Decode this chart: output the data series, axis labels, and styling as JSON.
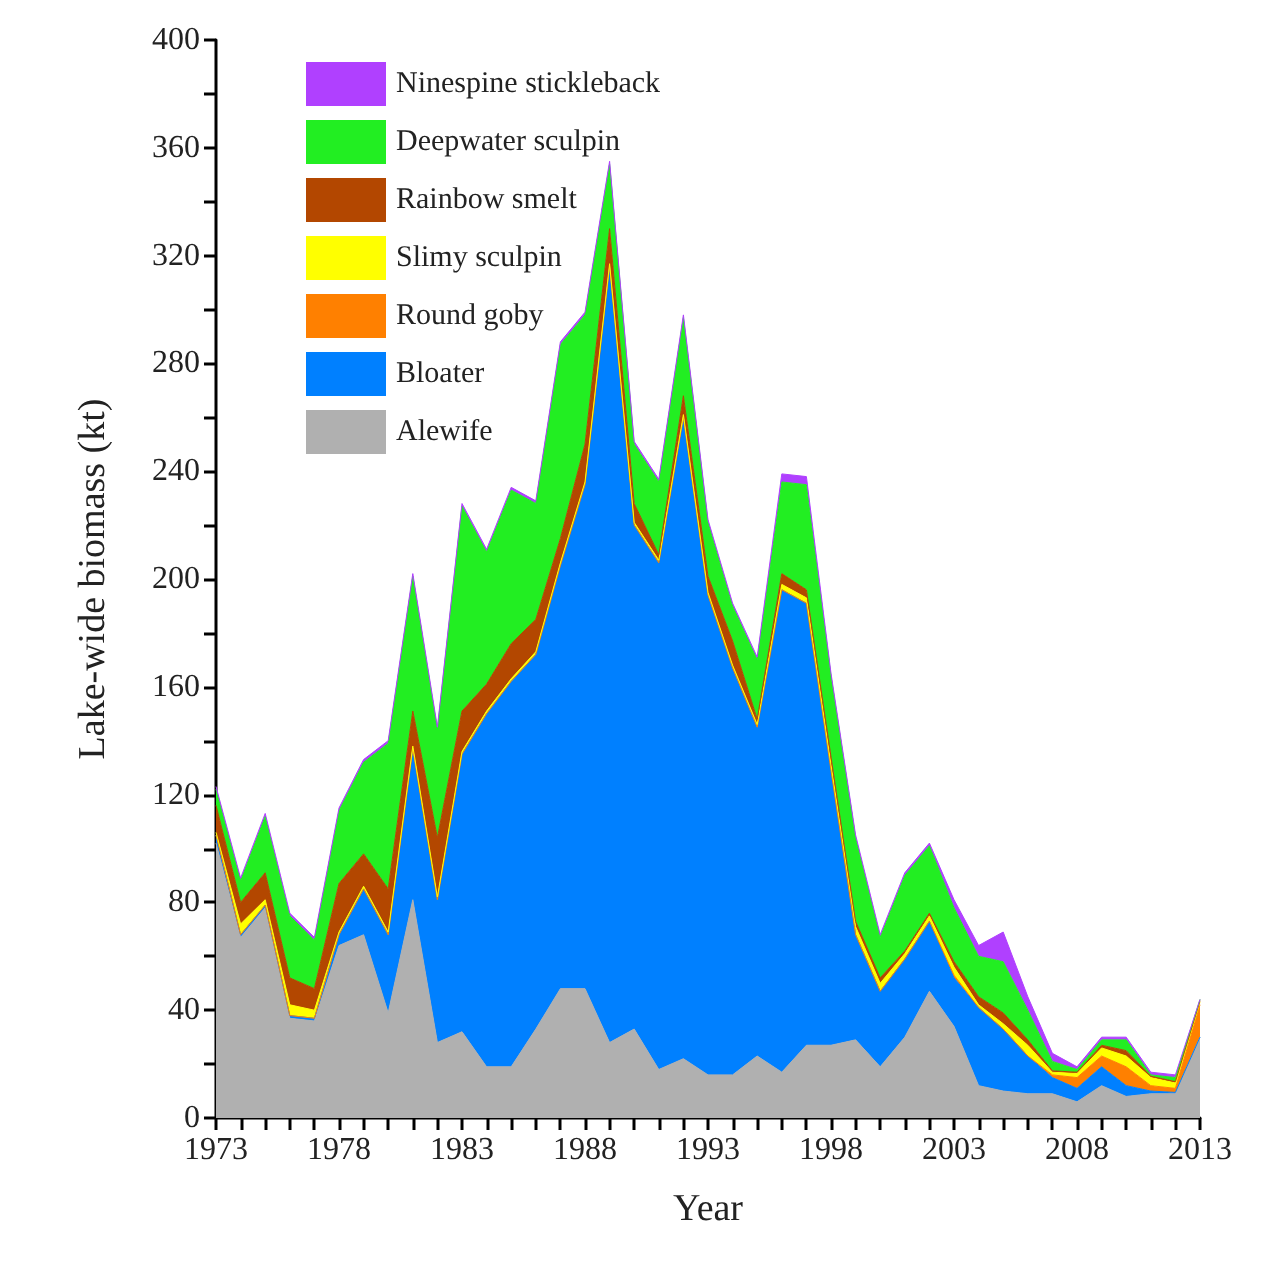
{
  "chart_data": {
    "type": "area",
    "stacked": true,
    "xlabel": "Year",
    "ylabel": "Lake-wide biomass (kt)",
    "legend": "top left",
    "grid": false,
    "marker": "none",
    "x": [
      1973,
      1974,
      1975,
      1976,
      1977,
      1978,
      1979,
      1980,
      1981,
      1982,
      1983,
      1984,
      1985,
      1986,
      1987,
      1988,
      1989,
      1990,
      1991,
      1992,
      1993,
      1994,
      1995,
      1996,
      1997,
      1998,
      1999,
      2000,
      2001,
      2002,
      2003,
      2004,
      2005,
      2006,
      2007,
      2008,
      2009,
      2010,
      2011,
      2012,
      2013
    ],
    "xlim": [
      1973,
      2013
    ],
    "xticks": [
      1973,
      {
        "value": 1974,
        "label": null
      },
      {
        "value": 1975,
        "label": null
      },
      {
        "value": 1976,
        "label": null
      },
      {
        "value": 1977,
        "label": null
      },
      1978,
      {
        "value": 1979,
        "label": null
      },
      {
        "value": 1980,
        "label": null
      },
      {
        "value": 1981,
        "label": null
      },
      {
        "value": 1982,
        "label": null
      },
      1983,
      {
        "value": 1984,
        "label": null
      },
      {
        "value": 1985,
        "label": null
      },
      {
        "value": 1986,
        "label": null
      },
      {
        "value": 1987,
        "label": null
      },
      1988,
      {
        "value": 1989,
        "label": null
      },
      {
        "value": 1990,
        "label": null
      },
      {
        "value": 1991,
        "label": null
      },
      {
        "value": 1992,
        "label": null
      },
      1993,
      {
        "value": 1994,
        "label": null
      },
      {
        "value": 1995,
        "label": null
      },
      {
        "value": 1996,
        "label": null
      },
      {
        "value": 1997,
        "label": null
      },
      1998,
      {
        "value": 1999,
        "label": null
      },
      {
        "value": 2000,
        "label": null
      },
      {
        "value": 2001,
        "label": null
      },
      {
        "value": 2002,
        "label": null
      },
      2003,
      {
        "value": 2004,
        "label": null
      },
      {
        "value": 2005,
        "label": null
      },
      {
        "value": 2006,
        "label": null
      },
      {
        "value": 2007,
        "label": null
      },
      2008,
      {
        "value": 2009,
        "label": null
      },
      {
        "value": 2010,
        "label": null
      },
      {
        "value": 2011,
        "label": null
      },
      {
        "value": 2012,
        "label": null
      },
      2013
    ],
    "ylim": [
      0,
      400
    ],
    "yticks": [
      0,
      {
        "value": 20,
        "label": null
      },
      40,
      {
        "value": 60,
        "label": null
      },
      80,
      {
        "value": 100,
        "label": null
      },
      120,
      {
        "value": 140,
        "label": null
      },
      160,
      {
        "value": 180,
        "label": null
      },
      200,
      {
        "value": 220,
        "label": null
      },
      240,
      {
        "value": 260,
        "label": null
      },
      280,
      {
        "value": 300,
        "label": null
      },
      320,
      {
        "value": 340,
        "label": null
      },
      360,
      {
        "value": 380,
        "label": null
      },
      400
    ],
    "series": [
      {
        "name": "Alewife",
        "color": "#b0b0b0",
        "values": [
          102,
          67,
          78,
          37,
          36,
          64,
          68,
          39,
          81,
          28,
          32,
          19,
          19,
          33,
          48,
          48,
          28,
          33,
          18,
          22,
          16,
          16,
          23,
          17,
          27,
          27,
          29,
          19,
          30,
          47,
          34,
          12,
          10,
          9,
          9,
          6,
          12,
          8,
          9,
          9,
          30
        ]
      },
      {
        "name": "Bloater",
        "color": "#0080ff",
        "values": [
          3,
          1,
          1,
          1,
          1,
          4,
          17,
          29,
          56,
          53,
          103,
          131,
          143,
          139,
          157,
          187,
          288,
          187,
          188,
          238,
          178,
          151,
          122,
          179,
          164,
          102,
          39,
          28,
          29,
          26,
          18,
          29,
          23,
          14,
          6,
          5,
          7,
          4,
          1,
          0.5,
          0
        ]
      },
      {
        "name": "Round goby",
        "color": "#ff8000",
        "values": [
          0,
          0,
          0,
          0,
          0,
          0,
          0,
          0,
          0,
          0,
          0,
          0,
          0,
          0,
          0,
          0,
          0,
          0,
          0,
          0,
          0,
          0,
          0,
          0,
          0,
          0,
          0,
          0,
          0,
          0,
          1,
          0,
          0,
          0,
          1,
          4,
          4,
          7,
          2,
          1.5,
          12
        ]
      },
      {
        "name": "Slimy sculpin",
        "color": "#ffff00",
        "values": [
          1,
          4,
          2,
          4,
          3,
          1,
          1,
          1,
          1,
          1,
          1,
          1,
          1,
          1,
          1,
          1,
          1,
          1,
          1,
          1,
          1,
          1,
          1,
          2,
          2,
          2,
          3,
          3,
          2,
          2,
          3,
          1,
          2,
          4,
          1,
          1.5,
          3,
          4,
          3,
          2,
          1
        ]
      },
      {
        "name": "Rainbow smelt",
        "color": "#b34700",
        "values": [
          10,
          8,
          10,
          10,
          8,
          18,
          12,
          16,
          13,
          22,
          15,
          10,
          13,
          12,
          9,
          14,
          13,
          7,
          2,
          7,
          6,
          9,
          2,
          4,
          3,
          3,
          2,
          2,
          1,
          1,
          2,
          3,
          4,
          2,
          0.5,
          0.5,
          1,
          2,
          0.5,
          0.5,
          0.5
        ]
      },
      {
        "name": "Deepwater sculpin",
        "color": "#22ee22",
        "values": [
          6,
          8,
          21,
          23,
          18,
          27,
          34,
          54,
          50,
          40,
          76,
          49,
          57,
          43,
          72,
          48,
          24,
          22,
          27,
          29,
          20,
          13,
          22,
          34,
          39,
          30,
          31,
          15,
          28,
          25,
          20,
          15,
          19,
          11,
          3.5,
          1,
          2,
          4,
          0.5,
          1.5,
          0.5
        ]
      },
      {
        "name": "Ninespine stickleback",
        "color": "#b040ff",
        "values": [
          1,
          1,
          1,
          1,
          1,
          1,
          1,
          1,
          1,
          1,
          1,
          1,
          1,
          1,
          1,
          1,
          1,
          1,
          1,
          1,
          1,
          1,
          1,
          3,
          3,
          1,
          1,
          1,
          1,
          1,
          3,
          4,
          11,
          5,
          3,
          1,
          1,
          1,
          1,
          1,
          0
        ]
      }
    ]
  }
}
